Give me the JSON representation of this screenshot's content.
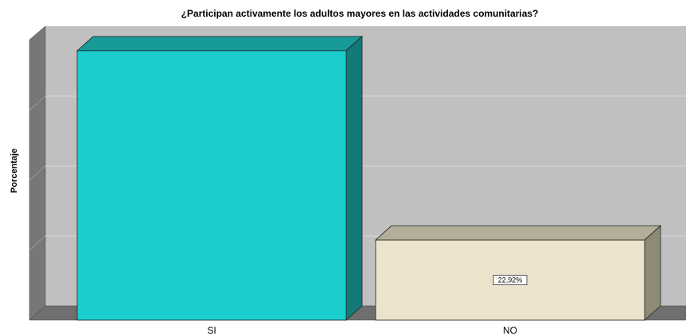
{
  "chart_data": {
    "type": "bar3d",
    "title": "¿Participan activamente los adultos mayores en las actividades comunitarias?",
    "y_label": "Porcentaje",
    "categories": [
      "SI",
      "NO"
    ],
    "values": [
      77.08,
      22.92
    ],
    "value_labels": [
      null,
      "22,92%"
    ],
    "colors": [
      "#1ccdcd",
      "#ebe3cc"
    ],
    "side_colors": [
      "#127a78",
      "#8d8a78"
    ],
    "top_colors": [
      "#179a98",
      "#b3ae9a"
    ],
    "ylim": [
      0,
      80
    ],
    "yticks": [
      20,
      40,
      60
    ],
    "grid": true
  }
}
